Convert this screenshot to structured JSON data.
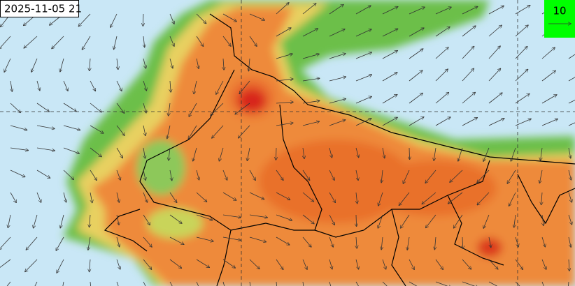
{
  "timestamp": "2025-11-05 21",
  "wind_legend": {
    "label": "10"
  }
}
